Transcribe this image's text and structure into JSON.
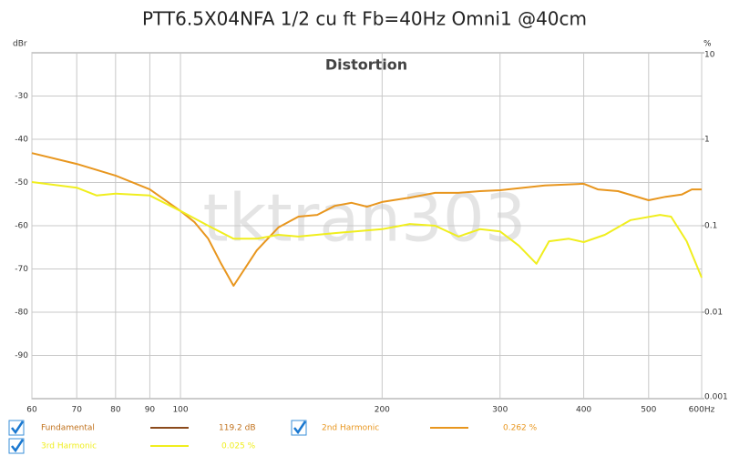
{
  "chart_data": {
    "type": "line",
    "title": "PTT6.5X04NFA 1/2 cu ft Fb=40Hz Omni1 @40cm",
    "subtitle": "Distortion",
    "watermark": "tktran303",
    "y_label": "dBr",
    "y2_label": "%",
    "x_log": true,
    "y2_log": true,
    "grid": true,
    "xlim": [
      60,
      600
    ],
    "xticks": [
      60,
      70,
      80,
      90,
      100,
      200,
      300,
      400,
      500,
      {
        "value": 600,
        "label": "600Hz"
      }
    ],
    "ylim": [
      -100,
      -20
    ],
    "yticks": [
      -30,
      -40,
      -50,
      -60,
      -70,
      -80,
      -90
    ],
    "y2lim": [
      0.001,
      10
    ],
    "y2ticks": [
      10,
      1,
      0.1,
      0.01,
      0.001
    ],
    "reference": {
      "name": "Fundamental",
      "color": "#8b4a1c",
      "reading": "119.2 dB"
    },
    "series": [
      {
        "name": "2nd Harmonic",
        "color": "#e8961e",
        "reading": "0.262 %",
        "x": [
          60,
          70,
          80,
          90,
          100,
          105,
          110,
          115,
          120,
          130,
          140,
          150,
          160,
          170,
          180,
          190,
          200,
          220,
          240,
          260,
          280,
          300,
          350,
          400,
          420,
          450,
          500,
          530,
          560,
          580,
          600
        ],
        "values": [
          -43.2,
          -45.7,
          -48.4,
          -51.6,
          -56.6,
          -59.2,
          -63,
          -68.8,
          -73.9,
          -65.7,
          -60.4,
          -57.9,
          -57.5,
          -55.4,
          -54.7,
          -55.6,
          -54.5,
          -53.5,
          -52.4,
          -52.4,
          -52,
          -51.8,
          -50.7,
          -50.3,
          -51.6,
          -52,
          -54.1,
          -53.3,
          -52.8,
          -51.6,
          -51.6
        ]
      },
      {
        "name": "3rd Harmonic",
        "color": "#f0ee1e",
        "reading": "0.025 %",
        "x": [
          60,
          70,
          75,
          80,
          90,
          100,
          110,
          120,
          130,
          140,
          150,
          170,
          200,
          220,
          240,
          260,
          280,
          300,
          320,
          340,
          355,
          380,
          400,
          430,
          470,
          520,
          540,
          570,
          600
        ],
        "values": [
          -49.9,
          -51.2,
          -53,
          -52.6,
          -53,
          -56.6,
          -60,
          -63,
          -63,
          -62.1,
          -62.5,
          -61.7,
          -60.8,
          -59.6,
          -60,
          -62.5,
          -60.8,
          -61.3,
          -64.6,
          -68.8,
          -63.6,
          -63,
          -63.8,
          -62.1,
          -58.7,
          -57.5,
          -57.9,
          -63.6,
          -72
        ]
      }
    ]
  }
}
